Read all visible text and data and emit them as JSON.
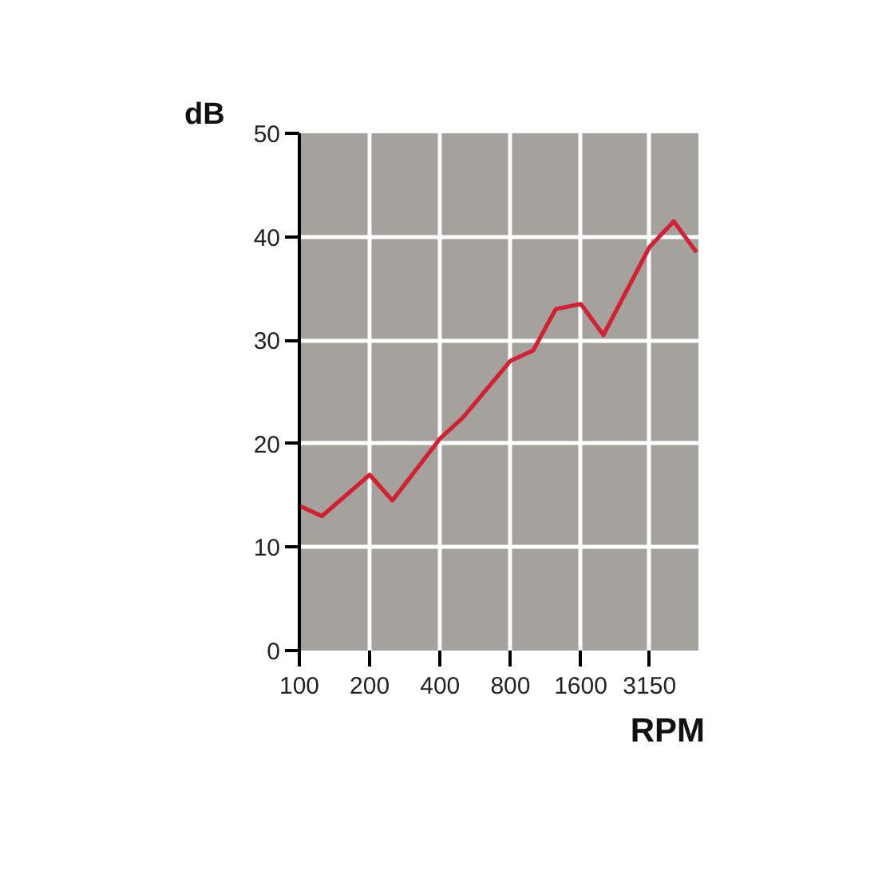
{
  "chart_data": {
    "type": "line",
    "xlabel": "RPM",
    "ylabel": "dB",
    "x": [
      100,
      125,
      200,
      250,
      400,
      500,
      800,
      1000,
      1250,
      1600,
      2000,
      3150,
      4000,
      5000
    ],
    "series": [
      {
        "color": "#d42032",
        "values": [
          14,
          13,
          17,
          14.5,
          20.5,
          22.5,
          28,
          29,
          33,
          33.5,
          30.5,
          39,
          41.5,
          38.5
        ]
      }
    ],
    "log": "x",
    "xlim": [
      100,
      5100
    ],
    "xticks": [
      100,
      200,
      400,
      800,
      1600,
      3150
    ],
    "ylim": [
      0,
      50
    ],
    "yticks": [
      0,
      10,
      20,
      30,
      40,
      50
    ],
    "grid": true,
    "line_style": "solid"
  }
}
